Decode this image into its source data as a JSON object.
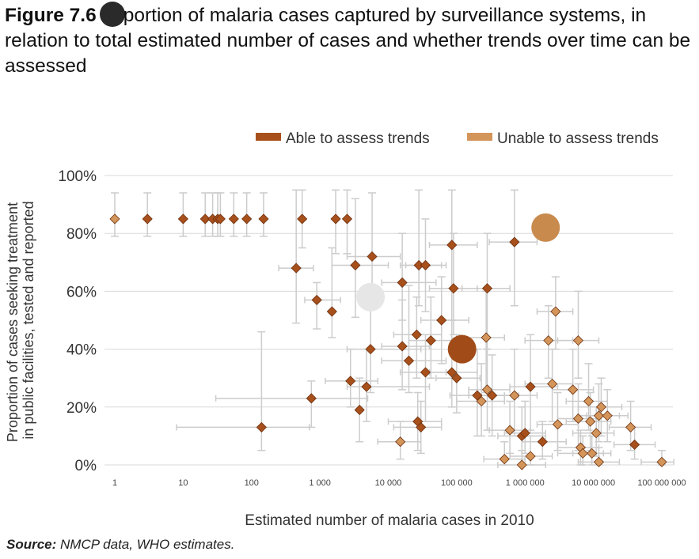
{
  "title": {
    "figure_label": "Figure 7.6",
    "text": "portion of malaria cases captured by surveillance systems, in relation to total estimated number of cases and whether trends over time can be assessed"
  },
  "source": {
    "label": "Source:",
    "text": "NMCP data, WHO estimates."
  },
  "colors": {
    "able": "#a8501c",
    "unable": "#d4955a",
    "errorbar": "#cccccc",
    "grid": "#d8d8d8"
  },
  "chart_data": {
    "type": "scatter",
    "xscale": "log",
    "xlim": [
      1,
      200000000
    ],
    "ylim": [
      0,
      100
    ],
    "xlabel": "Estimated number of malaria cases in 2010",
    "ylabel": "Proportion of cases seeking treatment in public facilities, tested and reported",
    "x_ticks": [
      {
        "value": 1,
        "label": "1"
      },
      {
        "value": 10,
        "label": "10"
      },
      {
        "value": 100,
        "label": "100"
      },
      {
        "value": 1000,
        "label": "1 000"
      },
      {
        "value": 10000,
        "label": "10 000"
      },
      {
        "value": 100000,
        "label": "100 000"
      },
      {
        "value": 1000000,
        "label": "1 000 000"
      },
      {
        "value": 10000000,
        "label": "10 000 000"
      },
      {
        "value": 100000000,
        "label": "100 000 000"
      }
    ],
    "y_ticks": [
      {
        "value": 0,
        "label": "0%"
      },
      {
        "value": 20,
        "label": "20%"
      },
      {
        "value": 40,
        "label": "40%"
      },
      {
        "value": 60,
        "label": "60%"
      },
      {
        "value": 80,
        "label": "80%"
      },
      {
        "value": 100,
        "label": "100%"
      }
    ],
    "grid": true,
    "legend_position": "top-right",
    "series": [
      {
        "name": "Able to assess trends",
        "color": "#a8501c",
        "points": [
          {
            "x": 3,
            "y": 85,
            "ylo": 79,
            "yhi": 94
          },
          {
            "x": 10,
            "y": 85,
            "ylo": 79,
            "yhi": 94
          },
          {
            "x": 21,
            "y": 85,
            "ylo": 79,
            "yhi": 94
          },
          {
            "x": 27,
            "y": 85,
            "ylo": 79,
            "yhi": 94
          },
          {
            "x": 32,
            "y": 85,
            "ylo": 79,
            "yhi": 94
          },
          {
            "x": 35,
            "y": 85,
            "ylo": 79,
            "yhi": 94
          },
          {
            "x": 55,
            "y": 85,
            "ylo": 79,
            "yhi": 94
          },
          {
            "x": 85,
            "y": 85,
            "ylo": 79,
            "yhi": 94
          },
          {
            "x": 150,
            "y": 85,
            "ylo": 79,
            "yhi": 94
          },
          {
            "x": 550,
            "y": 85,
            "ylo": 75,
            "yhi": 95
          },
          {
            "x": 1700,
            "y": 85,
            "ylo": 73,
            "yhi": 95
          },
          {
            "x": 2500,
            "y": 85,
            "ylo": 73,
            "yhi": 95
          },
          {
            "x": 140,
            "y": 13,
            "ylo": 5,
            "yhi": 46,
            "xlo": 8,
            "xhi": 700
          },
          {
            "x": 450,
            "y": 68,
            "ylo": 49,
            "yhi": 95,
            "xlo": 250,
            "xhi": 800
          },
          {
            "x": 900,
            "y": 57,
            "ylo": 47,
            "yhi": 63,
            "xlo": 600,
            "xhi": 2000
          },
          {
            "x": 1500,
            "y": 53,
            "ylo": 44,
            "yhi": 75
          },
          {
            "x": 750,
            "y": 23,
            "ylo": 13,
            "yhi": 29,
            "xlo": 30,
            "xhi": 5000
          },
          {
            "x": 3300,
            "y": 69,
            "ylo": 51,
            "yhi": 92,
            "xlo": 1500,
            "xhi": 10000
          },
          {
            "x": 5800,
            "y": 72,
            "ylo": 55,
            "yhi": 94,
            "xlo": 2500,
            "xhi": 15000
          },
          {
            "x": 2800,
            "y": 29,
            "ylo": 20,
            "yhi": 40,
            "xlo": 1200,
            "xhi": 7000
          },
          {
            "x": 3800,
            "y": 19,
            "ylo": 8,
            "yhi": 30
          },
          {
            "x": 4800,
            "y": 27,
            "ylo": 15,
            "yhi": 40,
            "xlo": 2500,
            "xhi": 40000
          },
          {
            "x": 5500,
            "y": 40,
            "ylo": 25,
            "yhi": 60,
            "xlo": 2500,
            "xhi": 30000
          },
          {
            "x": 16000,
            "y": 63,
            "ylo": 50,
            "yhi": 80,
            "xlo": 8000,
            "xhi": 50000
          },
          {
            "x": 16000,
            "y": 41,
            "ylo": 26,
            "yhi": 57,
            "xlo": 8000,
            "xhi": 40000
          },
          {
            "x": 20000,
            "y": 36,
            "ylo": 25,
            "yhi": 62,
            "xlo": 8000,
            "xhi": 70000
          },
          {
            "x": 28000,
            "y": 69,
            "ylo": 55,
            "yhi": 95,
            "xlo": 15000,
            "xhi": 60000
          },
          {
            "x": 35000,
            "y": 69,
            "ylo": 53,
            "yhi": 85,
            "xlo": 18000,
            "xhi": 70000
          },
          {
            "x": 26000,
            "y": 45,
            "ylo": 30,
            "yhi": 58,
            "xlo": 12000,
            "xhi": 60000
          },
          {
            "x": 42000,
            "y": 43,
            "ylo": 30,
            "yhi": 58,
            "xlo": 20000,
            "xhi": 90000
          },
          {
            "x": 35000,
            "y": 32,
            "ylo": 15,
            "yhi": 45,
            "xlo": 15000,
            "xhi": 70000
          },
          {
            "x": 27000,
            "y": 15,
            "ylo": 5,
            "yhi": 25,
            "xlo": 10000,
            "xhi": 60000
          },
          {
            "x": 30000,
            "y": 13,
            "ylo": 4,
            "yhi": 22,
            "xlo": 12000,
            "xhi": 60000
          },
          {
            "x": 60000,
            "y": 50,
            "ylo": 35,
            "yhi": 65,
            "xlo": 30000,
            "xhi": 150000
          },
          {
            "x": 85000,
            "y": 76,
            "ylo": 50,
            "yhi": 95,
            "xlo": 40000,
            "xhi": 200000
          },
          {
            "x": 90000,
            "y": 61,
            "ylo": 45,
            "yhi": 80,
            "xlo": 40000,
            "xhi": 200000
          },
          {
            "x": 85000,
            "y": 32,
            "ylo": 20,
            "yhi": 50,
            "xlo": 40000,
            "xhi": 200000
          },
          {
            "x": 100000,
            "y": 30,
            "ylo": 18,
            "yhi": 45,
            "xlo": 50000,
            "xhi": 220000
          },
          {
            "x": 280000,
            "y": 61,
            "ylo": 40,
            "yhi": 80,
            "xlo": 120000,
            "xhi": 600000
          },
          {
            "x": 200000,
            "y": 24,
            "ylo": 10,
            "yhi": 40,
            "xlo": 80000,
            "xhi": 500000
          },
          {
            "x": 330000,
            "y": 24,
            "ylo": 10,
            "yhi": 38,
            "xlo": 150000,
            "xhi": 800000
          },
          {
            "x": 700000,
            "y": 77,
            "ylo": 55,
            "yhi": 95,
            "xlo": 300000,
            "xhi": 1500000
          },
          {
            "x": 1200000,
            "y": 27,
            "ylo": 12,
            "yhi": 45,
            "xlo": 600000,
            "xhi": 3000000
          },
          {
            "x": 900000,
            "y": 10,
            "ylo": 2,
            "yhi": 20,
            "xlo": 400000,
            "xhi": 2000000
          },
          {
            "x": 1000000,
            "y": 11,
            "ylo": 4,
            "yhi": 22,
            "xlo": 500000,
            "xhi": 2000000
          },
          {
            "x": 1800000,
            "y": 8,
            "ylo": 2,
            "yhi": 15,
            "xlo": 900000,
            "xhi": 4000000
          },
          {
            "x": 40000000,
            "y": 7,
            "ylo": 2,
            "yhi": 13,
            "xlo": 20000000,
            "xhi": 80000000
          }
        ]
      },
      {
        "name": "Unable to assess trends",
        "color": "#d4955a",
        "points": [
          {
            "x": 1,
            "y": 85,
            "ylo": 79,
            "yhi": 94
          },
          {
            "x": 15000,
            "y": 8,
            "ylo": 2,
            "yhi": 15,
            "xlo": 7000,
            "xhi": 30000
          },
          {
            "x": 230000,
            "y": 22,
            "ylo": 10,
            "yhi": 35,
            "xlo": 100000,
            "xhi": 500000
          },
          {
            "x": 270000,
            "y": 44,
            "ylo": 25,
            "yhi": 60,
            "xlo": 120000,
            "xhi": 500000
          },
          {
            "x": 280000,
            "y": 26,
            "ylo": 12,
            "yhi": 40,
            "xlo": 150000,
            "xhi": 600000
          },
          {
            "x": 500000,
            "y": 2,
            "ylo": 0,
            "yhi": 8,
            "xlo": 250000,
            "xhi": 1000000
          },
          {
            "x": 600000,
            "y": 12,
            "ylo": 4,
            "yhi": 22,
            "xlo": 300000,
            "xhi": 1200000
          },
          {
            "x": 700000,
            "y": 24,
            "ylo": 10,
            "yhi": 40,
            "xlo": 300000,
            "xhi": 1500000
          },
          {
            "x": 900000,
            "y": 0,
            "ylo": 0,
            "yhi": 5,
            "xlo": 400000,
            "xhi": 2000000
          },
          {
            "x": 1200000,
            "y": 3,
            "ylo": 0,
            "yhi": 10,
            "xlo": 600000,
            "xhi": 2500000
          },
          {
            "x": 2200000,
            "y": 43,
            "ylo": 30,
            "yhi": 55,
            "xlo": 1000000,
            "xhi": 5000000
          },
          {
            "x": 2500000,
            "y": 28,
            "ylo": 15,
            "yhi": 40,
            "xlo": 1000000,
            "xhi": 5000000
          },
          {
            "x": 2800000,
            "y": 53,
            "ylo": 40,
            "yhi": 65,
            "xlo": 1500000,
            "xhi": 5000000
          },
          {
            "x": 3000000,
            "y": 14,
            "ylo": 5,
            "yhi": 25,
            "xlo": 1500000,
            "xhi": 6000000
          },
          {
            "x": 5000000,
            "y": 26,
            "ylo": 15,
            "yhi": 40,
            "xlo": 2500000,
            "xhi": 10000000
          },
          {
            "x": 6000000,
            "y": 43,
            "ylo": 30,
            "yhi": 60,
            "xlo": 3000000,
            "xhi": 12000000
          },
          {
            "x": 6000000,
            "y": 16,
            "ylo": 5,
            "yhi": 28,
            "xlo": 3000000,
            "xhi": 12000000
          },
          {
            "x": 6500000,
            "y": 6,
            "ylo": 0,
            "yhi": 12,
            "xlo": 3000000,
            "xhi": 12000000
          },
          {
            "x": 7000000,
            "y": 4,
            "ylo": 0,
            "yhi": 10,
            "xlo": 3000000,
            "xhi": 14000000
          },
          {
            "x": 8500000,
            "y": 22,
            "ylo": 12,
            "yhi": 35,
            "xlo": 4000000,
            "xhi": 16000000
          },
          {
            "x": 9000000,
            "y": 15,
            "ylo": 5,
            "yhi": 25,
            "xlo": 4000000,
            "xhi": 18000000
          },
          {
            "x": 9500000,
            "y": 4,
            "ylo": 0,
            "yhi": 10,
            "xlo": 5000000,
            "xhi": 18000000
          },
          {
            "x": 11000000,
            "y": 11,
            "ylo": 3,
            "yhi": 20,
            "xlo": 5000000,
            "xhi": 20000000
          },
          {
            "x": 12000000,
            "y": 17,
            "ylo": 8,
            "yhi": 28,
            "xlo": 6000000,
            "xhi": 24000000
          },
          {
            "x": 13000000,
            "y": 20,
            "ylo": 10,
            "yhi": 30,
            "xlo": 6000000,
            "xhi": 26000000
          },
          {
            "x": 12000000,
            "y": 1,
            "ylo": 0,
            "yhi": 6,
            "xlo": 6000000,
            "xhi": 24000000
          },
          {
            "x": 16000000,
            "y": 17,
            "ylo": 8,
            "yhi": 26,
            "xlo": 8000000,
            "xhi": 32000000
          },
          {
            "x": 35000000,
            "y": 13,
            "ylo": 5,
            "yhi": 22,
            "xlo": 17000000,
            "xhi": 70000000
          },
          {
            "x": 100000000,
            "y": 1,
            "ylo": 0,
            "yhi": 5,
            "xlo": 50000000,
            "xhi": 150000000
          }
        ]
      }
    ],
    "overlay_circles": [
      {
        "x": 5500,
        "y": 58,
        "color": "#e6e6e6"
      },
      {
        "x": 2000000,
        "y": 82,
        "color": "#c98a4e"
      },
      {
        "x": 120000,
        "y": 40,
        "color": "#a14b18"
      }
    ]
  }
}
